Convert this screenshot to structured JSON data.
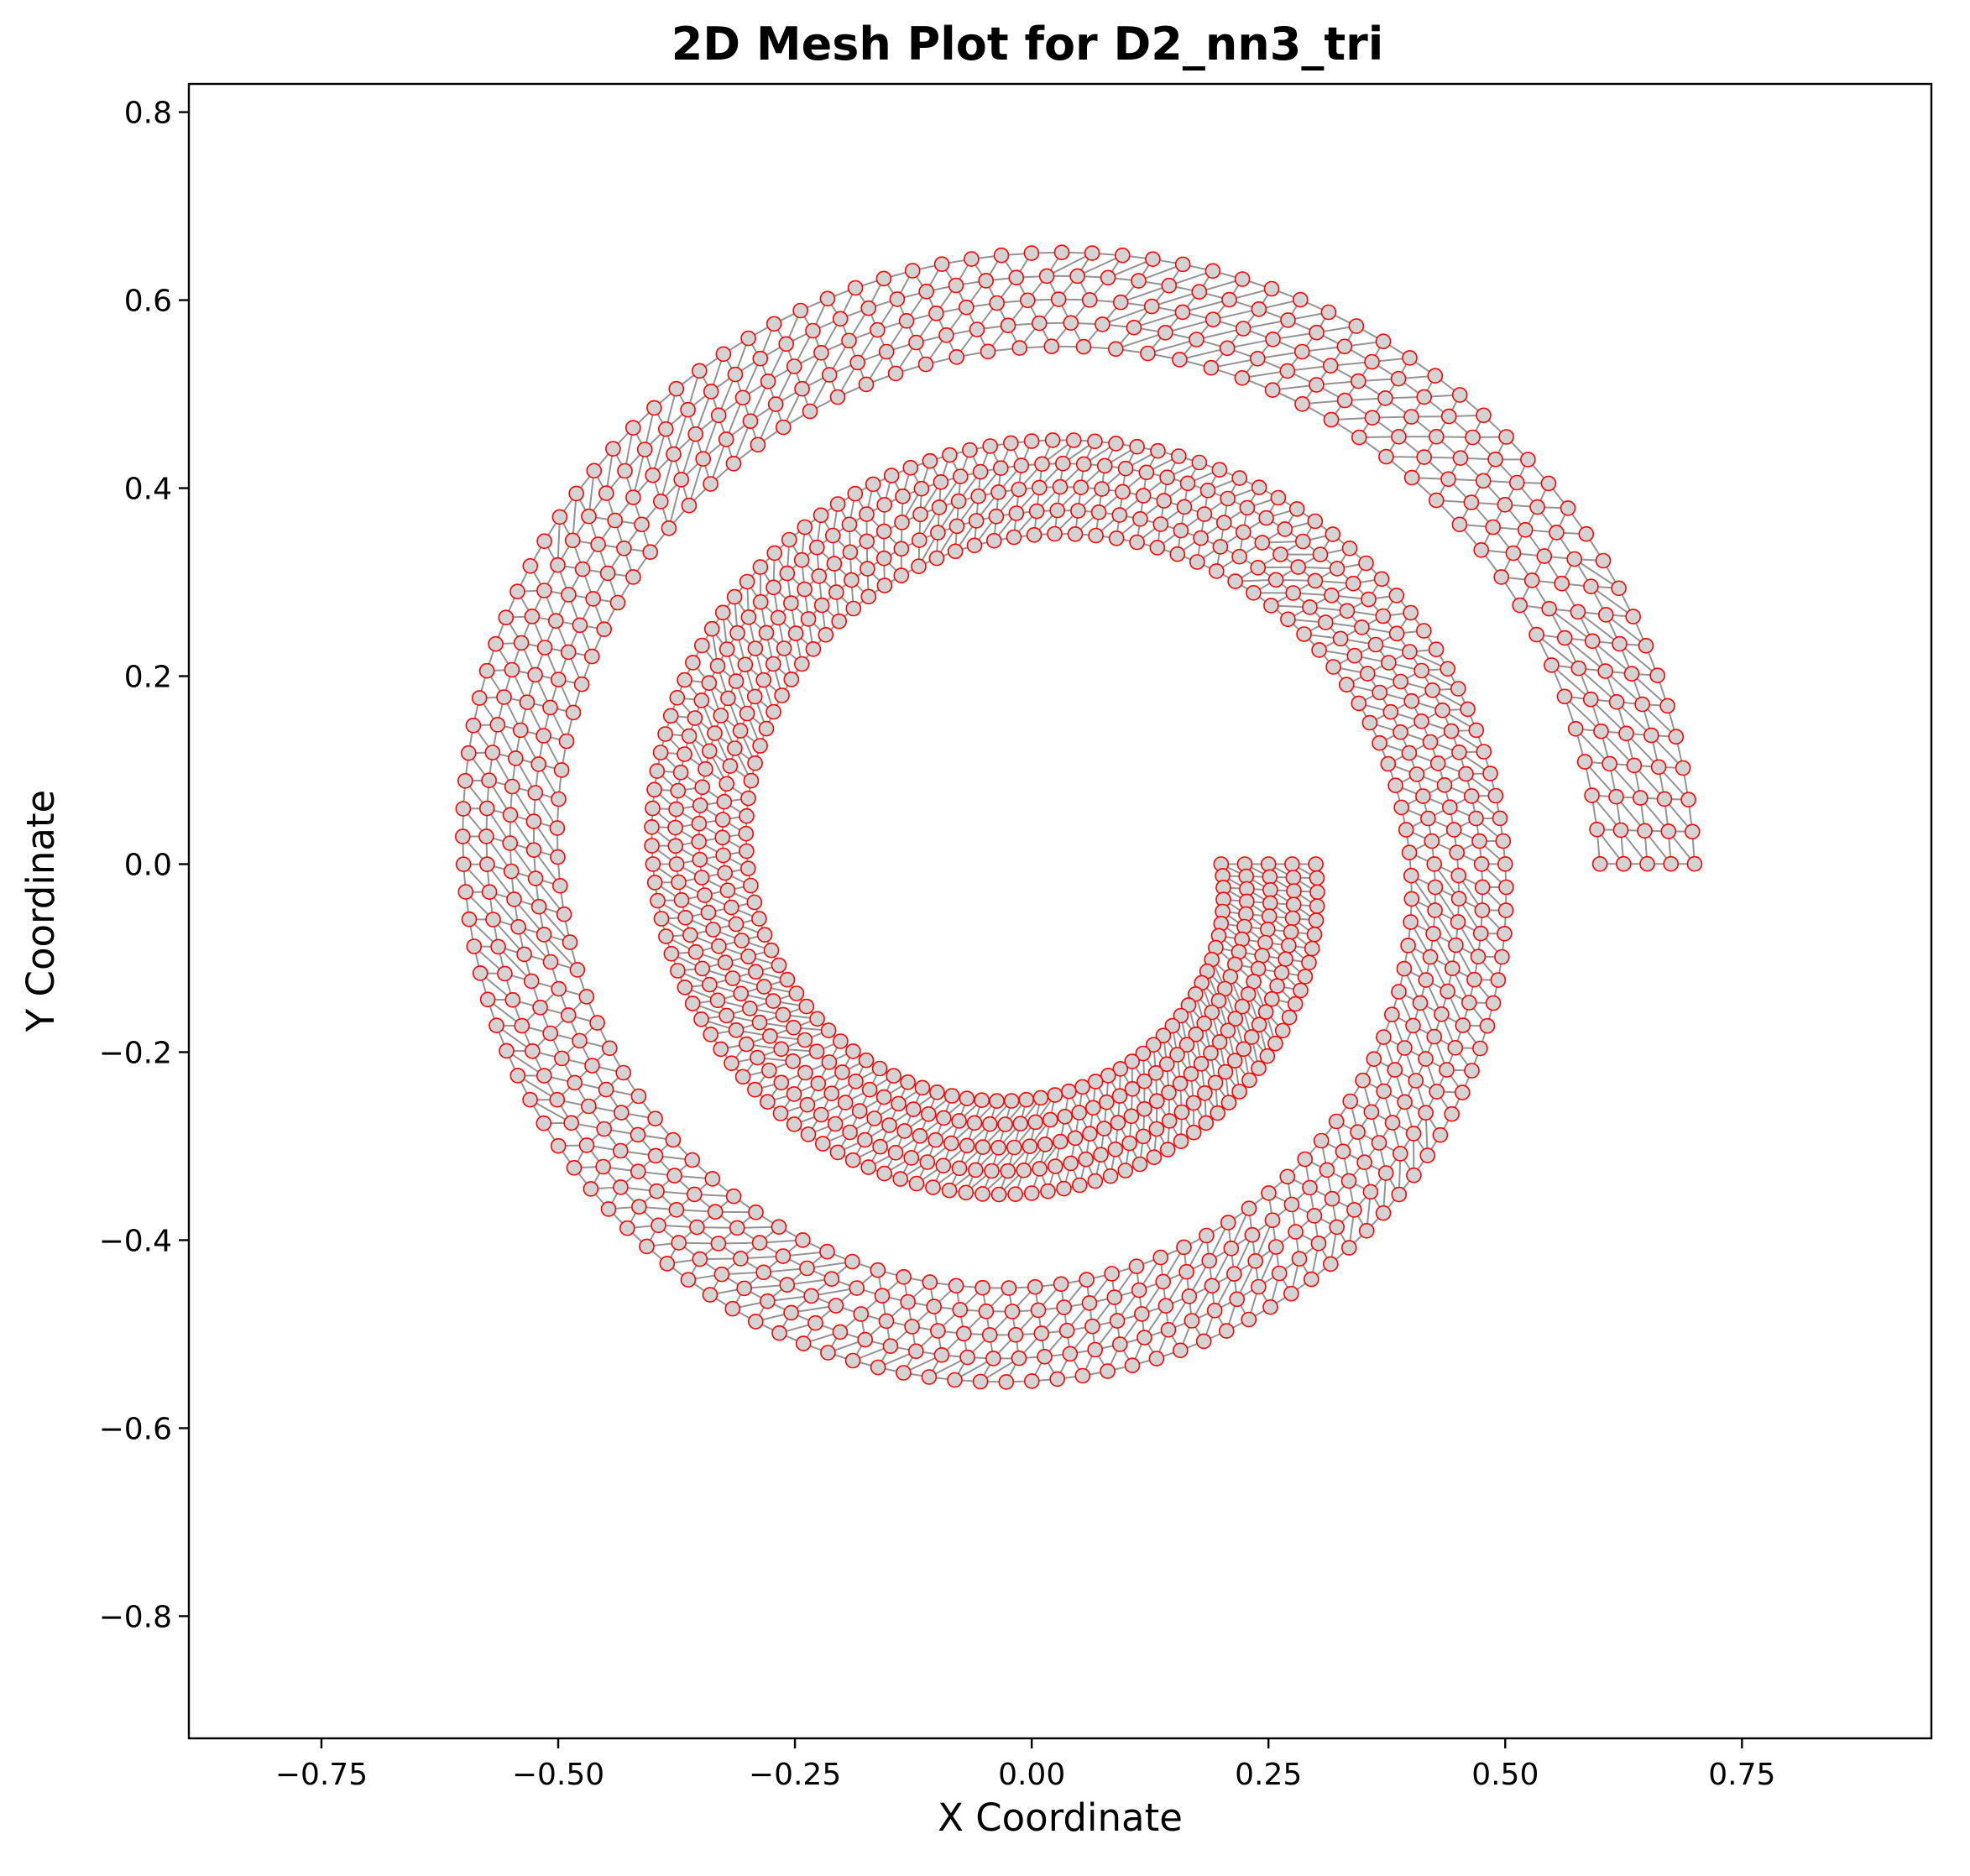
{
  "chart_data": {
    "type": "scatter",
    "title": "2D Mesh Plot for D2_nn3_tri",
    "xlabel": "X Coordinate",
    "ylabel": "Y Coordinate",
    "xlim": [
      -0.89,
      0.95
    ],
    "ylim": [
      -0.93,
      0.83
    ],
    "xticks": [
      -0.75,
      -0.5,
      -0.25,
      0.0,
      0.25,
      0.5,
      0.75
    ],
    "xtick_labels": [
      "−0.75",
      "−0.50",
      "−0.25",
      "0.00",
      "0.25",
      "0.50",
      "0.75"
    ],
    "yticks": [
      0.8,
      0.6,
      0.4,
      0.2,
      0.0,
      -0.2,
      -0.4,
      -0.6,
      -0.8
    ],
    "ytick_labels": [
      "0.8",
      "0.6",
      "0.4",
      "0.2",
      "0.0",
      "−0.2",
      "−0.4",
      "−0.6",
      "−0.8"
    ],
    "grid": false,
    "mesh": {
      "description_shape": "spiral",
      "element_type": "triangle",
      "nodes_per_element": 3,
      "spiral_inner_radius_start": 0.2,
      "spiral_outer_radius_start": 0.3,
      "radial_growth_per_turn": 0.2,
      "angle_span_radians": 12.566,
      "radial_layers": 5
    },
    "colors": {
      "node_face": "#d3d3d3",
      "node_edge": "#ff0000",
      "mesh_edge": "#808080",
      "axes": "#000000"
    }
  }
}
